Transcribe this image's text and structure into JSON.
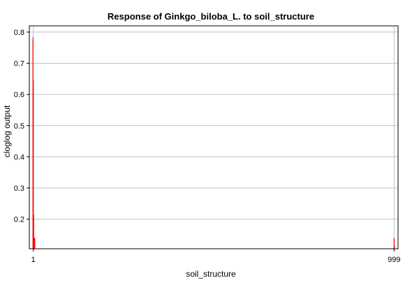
{
  "chart_data": {
    "type": "bar",
    "title": "Response of Ginkgo_biloba_L. to soil_structure",
    "xlabel": "soil_structure",
    "ylabel": "cloglog output",
    "xlim": [
      -10,
      1010
    ],
    "ylim": [
      0.105,
      0.82
    ],
    "yticks": [
      0.2,
      0.3,
      0.4,
      0.5,
      0.6,
      0.7,
      0.8
    ],
    "xticks": [
      {
        "value": 1,
        "label": "1"
      },
      {
        "value": 999,
        "label": "999"
      }
    ],
    "grid": true,
    "bar_color": "#ff0000",
    "highlight_color": "#8080c0",
    "bars": [
      {
        "x": 0,
        "y": 0.785
      },
      {
        "x": 1,
        "y": 0.645
      },
      {
        "x": 2,
        "y": 0.215
      },
      {
        "x": 3,
        "y": 0.14
      },
      {
        "x": 4,
        "y": 0.14
      },
      {
        "x": 5,
        "y": 0.14
      },
      {
        "x": 999,
        "y": 0.14
      },
      {
        "x": 1000,
        "y": 0.115
      }
    ]
  }
}
